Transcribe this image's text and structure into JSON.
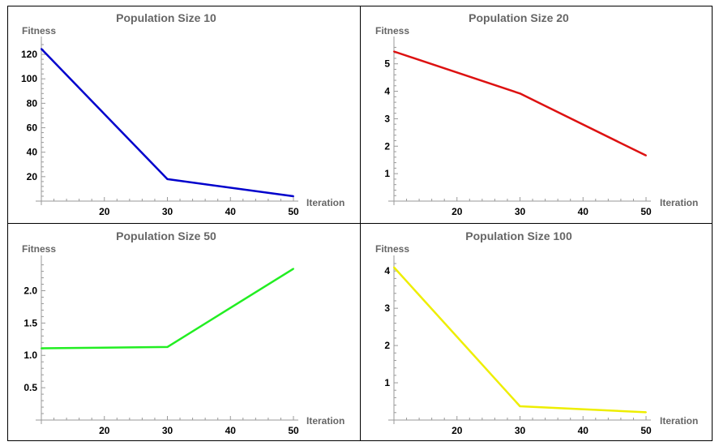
{
  "chart_data": [
    {
      "type": "line",
      "title": "Population Size 10",
      "xlabel": "Iteration",
      "ylabel": "Fitness",
      "x": [
        10,
        30,
        50
      ],
      "series": [
        {
          "values": [
            124.5,
            18,
            4
          ],
          "color": "#0000CC"
        }
      ],
      "xlim": [
        10,
        50
      ],
      "ylim": [
        0,
        128
      ],
      "xticks": [
        20,
        30,
        40,
        50
      ],
      "yticks": [
        20,
        40,
        60,
        80,
        100,
        120
      ],
      "grid": false
    },
    {
      "type": "line",
      "title": "Population Size 20",
      "xlabel": "Iteration",
      "ylabel": "Fitness",
      "x": [
        10,
        30,
        50
      ],
      "series": [
        {
          "values": [
            5.45,
            3.92,
            1.66
          ],
          "color": "#DD1111"
        }
      ],
      "xlim": [
        10,
        50
      ],
      "ylim": [
        0,
        5.7
      ],
      "xticks": [
        20,
        30,
        40,
        50
      ],
      "yticks": [
        1,
        2,
        3,
        4,
        5
      ],
      "grid": false
    },
    {
      "type": "line",
      "title": "Population Size 50",
      "xlabel": "Iteration",
      "ylabel": "Fitness",
      "x": [
        10,
        30,
        50
      ],
      "series": [
        {
          "values": [
            1.11,
            1.13,
            2.34
          ],
          "color": "#22EE22"
        }
      ],
      "xlim": [
        10,
        50
      ],
      "ylim": [
        0,
        2.42
      ],
      "xticks": [
        20,
        30,
        40,
        50
      ],
      "yticks": [
        0.5,
        1.0,
        1.5,
        2.0
      ],
      "ytick_labels": [
        "0.5",
        "1.0",
        "1.5",
        "2.0"
      ],
      "grid": false
    },
    {
      "type": "line",
      "title": "Population Size 100",
      "xlabel": "Iteration",
      "ylabel": "Fitness",
      "x": [
        10,
        30,
        50
      ],
      "series": [
        {
          "values": [
            4.1,
            0.37,
            0.21
          ],
          "color": "#EEEE00"
        }
      ],
      "xlim": [
        10,
        50
      ],
      "ylim": [
        0,
        4.2
      ],
      "xticks": [
        20,
        30,
        40,
        50
      ],
      "yticks": [
        1,
        2,
        3,
        4
      ],
      "grid": false
    }
  ]
}
